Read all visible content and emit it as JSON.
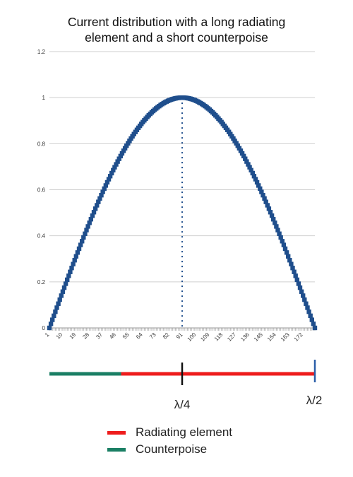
{
  "title_line1": "Current distribution with a long radiating",
  "title_line2": "element and a short counterpoise",
  "colors": {
    "series": "#1f4e8c",
    "radiating": "#ee1c1c",
    "counterpoise": "#1a7f64",
    "marker_quarter": "#111111",
    "marker_half": "#2a5ea8",
    "grid": "#cfcfcf"
  },
  "chart_data": {
    "type": "scatter",
    "title": "Current distribution with a long radiating element and a short counterpoise",
    "xlabel": "",
    "ylabel": "",
    "x_range": [
      1,
      180
    ],
    "ylim": [
      0,
      1.2
    ],
    "y_ticks": [
      0,
      0.2,
      0.4,
      0.6,
      0.8,
      1,
      1.2
    ],
    "y_tick_labels": [
      "0",
      "0.2",
      "0.4",
      "0.6",
      "0.8",
      "1",
      "1.2"
    ],
    "x_tick_labels": [
      1,
      10,
      19,
      28,
      37,
      46,
      55,
      64,
      73,
      82,
      91,
      100,
      109,
      118,
      127,
      136,
      145,
      154,
      163,
      172
    ],
    "grid": "horizontal",
    "series": [
      {
        "function": "sin",
        "x_start": 1,
        "x_end": 180,
        "peak_x": 90.5,
        "peak_y": 1.0,
        "count": 180
      }
    ],
    "peak_line_x": 90.5
  },
  "antenna": {
    "counterpoise_label": "Counterpoise",
    "radiating_label": "Radiating element",
    "quarter_label": "λ/4",
    "half_label": "λ/2",
    "counterpoise_fraction": 0.27
  },
  "legend": [
    {
      "label": "Radiating element",
      "color": "#ee1c1c"
    },
    {
      "label": "Counterpoise",
      "color": "#1a7f64"
    }
  ]
}
